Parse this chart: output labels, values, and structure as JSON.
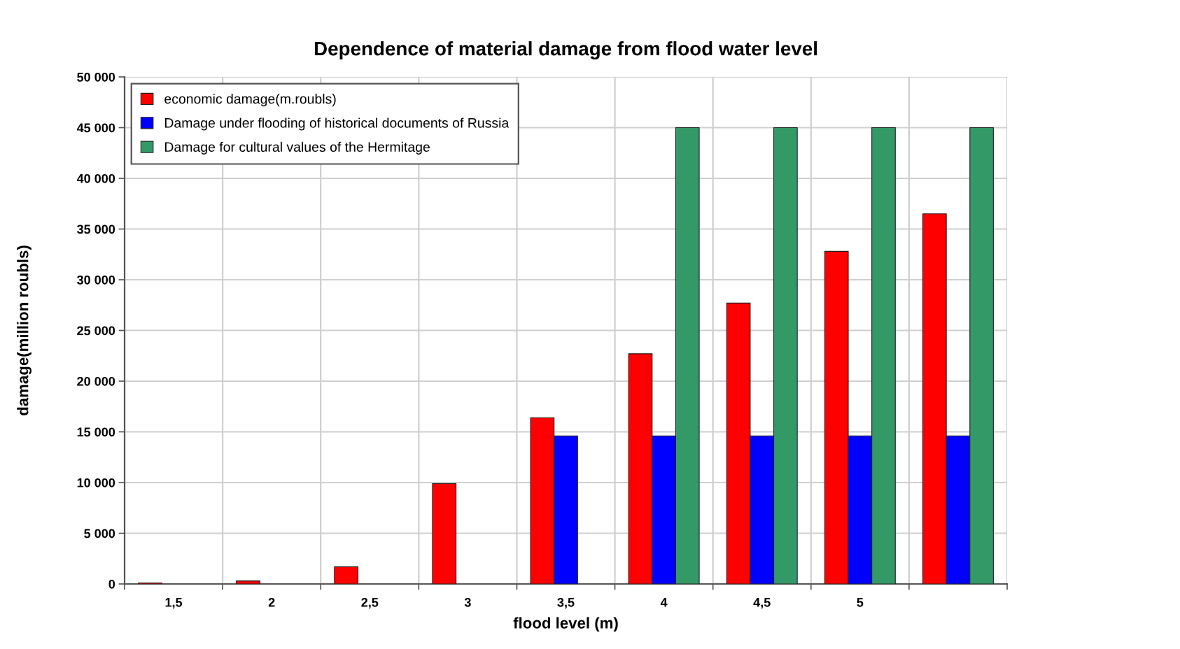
{
  "chart_data": {
    "type": "bar",
    "title": "Dependence of material damage from flood water level",
    "xlabel": "flood level (m)",
    "ylabel": "damage(million roubls)",
    "categories": [
      "1,5",
      "2",
      "2,5",
      "3",
      "3,5",
      "4",
      "4,5",
      "5",
      null
    ],
    "series": [
      {
        "name": "economic damage(m.roubls)",
        "color": "#ff0000",
        "values": [
          100,
          300,
          1700,
          9900,
          16400,
          22700,
          27700,
          32800,
          36500
        ]
      },
      {
        "name": "Damage under flooding of historical documents of Russia",
        "color": "#0000ff",
        "values": [
          null,
          null,
          null,
          null,
          14600,
          14600,
          14600,
          14600,
          14600
        ]
      },
      {
        "name": "Damage for cultural values of the Hermitage",
        "color": "#339966",
        "values": [
          null,
          null,
          null,
          null,
          null,
          45000,
          45000,
          45000,
          45000
        ]
      }
    ],
    "ylim": [
      0,
      50000
    ],
    "yticks": [
      0,
      {
        "value": 5000,
        "label": "5 000"
      },
      {
        "value": 10000,
        "label": "10 000"
      },
      {
        "value": 15000,
        "label": "15 000"
      },
      {
        "value": 20000,
        "label": "20 000"
      },
      {
        "value": 25000,
        "label": "25 000"
      },
      {
        "value": 30000,
        "label": "30 000"
      },
      {
        "value": 35000,
        "label": "35 000"
      },
      {
        "value": 40000,
        "label": "40 000"
      },
      {
        "value": 45000,
        "label": "45 000"
      },
      {
        "value": 50000,
        "label": "50 000"
      }
    ],
    "grid": true,
    "legend": "top left"
  }
}
